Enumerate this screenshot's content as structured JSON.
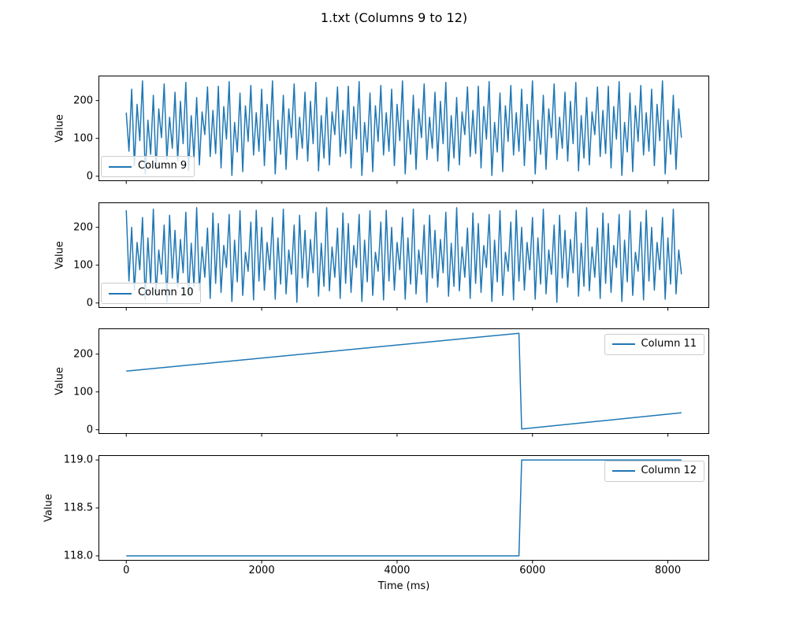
{
  "figure": {
    "background": "#ffffff",
    "line_color": "#1f77b4",
    "frame_color": "#000000"
  },
  "chart_data": {
    "type": "line",
    "title": "1.txt (Columns 9 to 12)",
    "xlabel": "Time (ms)",
    "legend_positions": [
      "lower-left",
      "lower-left",
      "upper-right",
      "upper-right"
    ],
    "xticks": [
      0,
      2000,
      4000,
      6000,
      8000
    ],
    "xtick_labels": [
      "0",
      "2000",
      "4000",
      "6000",
      "8000"
    ],
    "subplots": [
      {
        "name": "Column 9",
        "ylabel": "Value",
        "legend": {
          "label": "Column 9",
          "position": "lower-left"
        },
        "xlim": [
          -410,
          8610
        ],
        "ylim": [
          -13,
          266
        ],
        "yticks": [
          0,
          100,
          200
        ],
        "ytick_labels": [
          "0",
          "100",
          "200"
        ],
        "show_xtick_labels": false,
        "x": {
          "start": 0,
          "step": 40
        },
        "values": [
          168,
          66,
          230,
          28,
          190,
          94,
          252,
          6,
          148,
          58,
          214,
          18,
          178,
          102,
          244,
          44,
          156,
          74,
          222,
          40,
          198,
          86,
          248,
          14,
          160,
          48,
          208,
          30,
          170,
          110,
          236,
          52,
          174,
          60,
          238,
          22,
          184,
          98,
          250,
          2,
          142,
          64,
          220,
          12,
          186,
          92,
          240,
          56,
          168,
          66,
          230,
          28,
          190,
          94,
          252,
          6,
          148,
          58,
          214,
          18,
          178,
          102,
          244,
          44,
          156,
          74,
          222,
          40,
          198,
          86,
          248,
          14,
          160,
          48,
          208,
          30,
          170,
          110,
          236,
          52,
          174,
          60,
          238,
          22,
          184,
          98,
          250,
          2,
          142,
          64,
          220,
          12,
          186,
          92,
          240,
          56,
          168,
          66,
          230,
          28,
          190,
          94,
          252,
          6,
          148,
          58,
          214,
          18,
          178,
          102,
          244,
          44,
          156,
          74,
          222,
          40,
          198,
          86,
          248,
          14,
          160,
          48,
          208,
          30,
          170,
          110,
          236,
          52,
          174,
          60,
          238,
          22,
          184,
          98,
          250,
          2,
          142,
          64,
          220,
          12,
          186,
          92,
          240,
          56,
          168,
          66,
          230,
          28,
          190,
          94,
          252,
          6,
          148,
          58,
          214,
          18,
          178,
          102,
          244,
          44,
          156,
          74,
          222,
          40,
          198,
          86,
          248,
          14,
          160,
          48,
          208,
          30,
          170,
          110,
          236,
          52,
          174,
          60,
          238,
          22,
          184,
          98,
          250,
          2,
          142,
          64,
          220,
          12,
          186,
          92,
          240,
          56,
          168,
          66,
          230,
          28,
          190,
          94,
          252,
          6,
          148,
          58,
          214,
          18,
          178,
          102
        ]
      },
      {
        "name": "Column 10",
        "ylabel": "Value",
        "legend": {
          "label": "Column 10",
          "position": "lower-left"
        },
        "xlim": [
          -410,
          8610
        ],
        "ylim": [
          -13,
          266
        ],
        "yticks": [
          0,
          100,
          200
        ],
        "ytick_labels": [
          "0",
          "100",
          "200"
        ],
        "show_xtick_labels": false,
        "x": {
          "start": 0,
          "step": 40
        },
        "values": [
          245,
          58,
          200,
          34,
          160,
          88,
          226,
          10,
          172,
          50,
          248,
          24,
          140,
          76,
          206,
          2,
          232,
          66,
          192,
          42,
          168,
          80,
          240,
          18,
          158,
          44,
          252,
          32,
          148,
          68,
          198,
          12,
          238,
          52,
          210,
          28,
          152,
          94,
          234,
          4,
          166,
          56,
          244,
          20,
          134,
          84,
          214,
          8,
          245,
          58,
          200,
          34,
          160,
          88,
          226,
          10,
          172,
          50,
          248,
          24,
          140,
          76,
          206,
          2,
          232,
          66,
          192,
          42,
          168,
          80,
          240,
          18,
          158,
          44,
          252,
          32,
          148,
          68,
          198,
          12,
          238,
          52,
          210,
          28,
          152,
          94,
          234,
          4,
          166,
          56,
          244,
          20,
          134,
          84,
          214,
          8,
          245,
          58,
          200,
          34,
          160,
          88,
          226,
          10,
          172,
          50,
          248,
          24,
          140,
          76,
          206,
          2,
          232,
          66,
          192,
          42,
          168,
          80,
          240,
          18,
          158,
          44,
          252,
          32,
          148,
          68,
          198,
          12,
          238,
          52,
          210,
          28,
          152,
          94,
          234,
          4,
          166,
          56,
          244,
          20,
          134,
          84,
          214,
          8,
          245,
          58,
          200,
          34,
          160,
          88,
          226,
          10,
          172,
          50,
          248,
          24,
          140,
          76,
          206,
          2,
          232,
          66,
          192,
          42,
          168,
          80,
          240,
          18,
          158,
          44,
          252,
          32,
          148,
          68,
          198,
          12,
          238,
          52,
          210,
          28,
          152,
          94,
          234,
          4,
          166,
          56,
          244,
          20,
          134,
          84,
          214,
          8,
          245,
          58,
          200,
          34,
          160,
          88,
          226,
          10,
          172,
          50,
          248,
          24,
          140,
          76
        ]
      },
      {
        "name": "Column 11",
        "ylabel": "Value",
        "legend": {
          "label": "Column 11",
          "position": "upper-right"
        },
        "xlim": [
          -410,
          8610
        ],
        "ylim": [
          -11,
          268
        ],
        "yticks": [
          0,
          100,
          200
        ],
        "ytick_labels": [
          "0",
          "100",
          "200"
        ],
        "show_xtick_labels": false,
        "points": [
          [
            0,
            155
          ],
          [
            5800,
            255
          ],
          [
            5840,
            2
          ],
          [
            8200,
            45
          ]
        ]
      },
      {
        "name": "Column 12",
        "ylabel": "Value",
        "legend": {
          "label": "Column 12",
          "position": "upper-right"
        },
        "xlim": [
          -410,
          8610
        ],
        "ylim": [
          117.95,
          119.05
        ],
        "yticks": [
          118.0,
          118.5,
          119.0
        ],
        "ytick_labels": [
          "118.0",
          "118.5",
          "119.0"
        ],
        "show_xtick_labels": true,
        "points": [
          [
            0,
            118
          ],
          [
            5800,
            118
          ],
          [
            5840,
            119
          ],
          [
            8200,
            119
          ]
        ]
      }
    ]
  }
}
